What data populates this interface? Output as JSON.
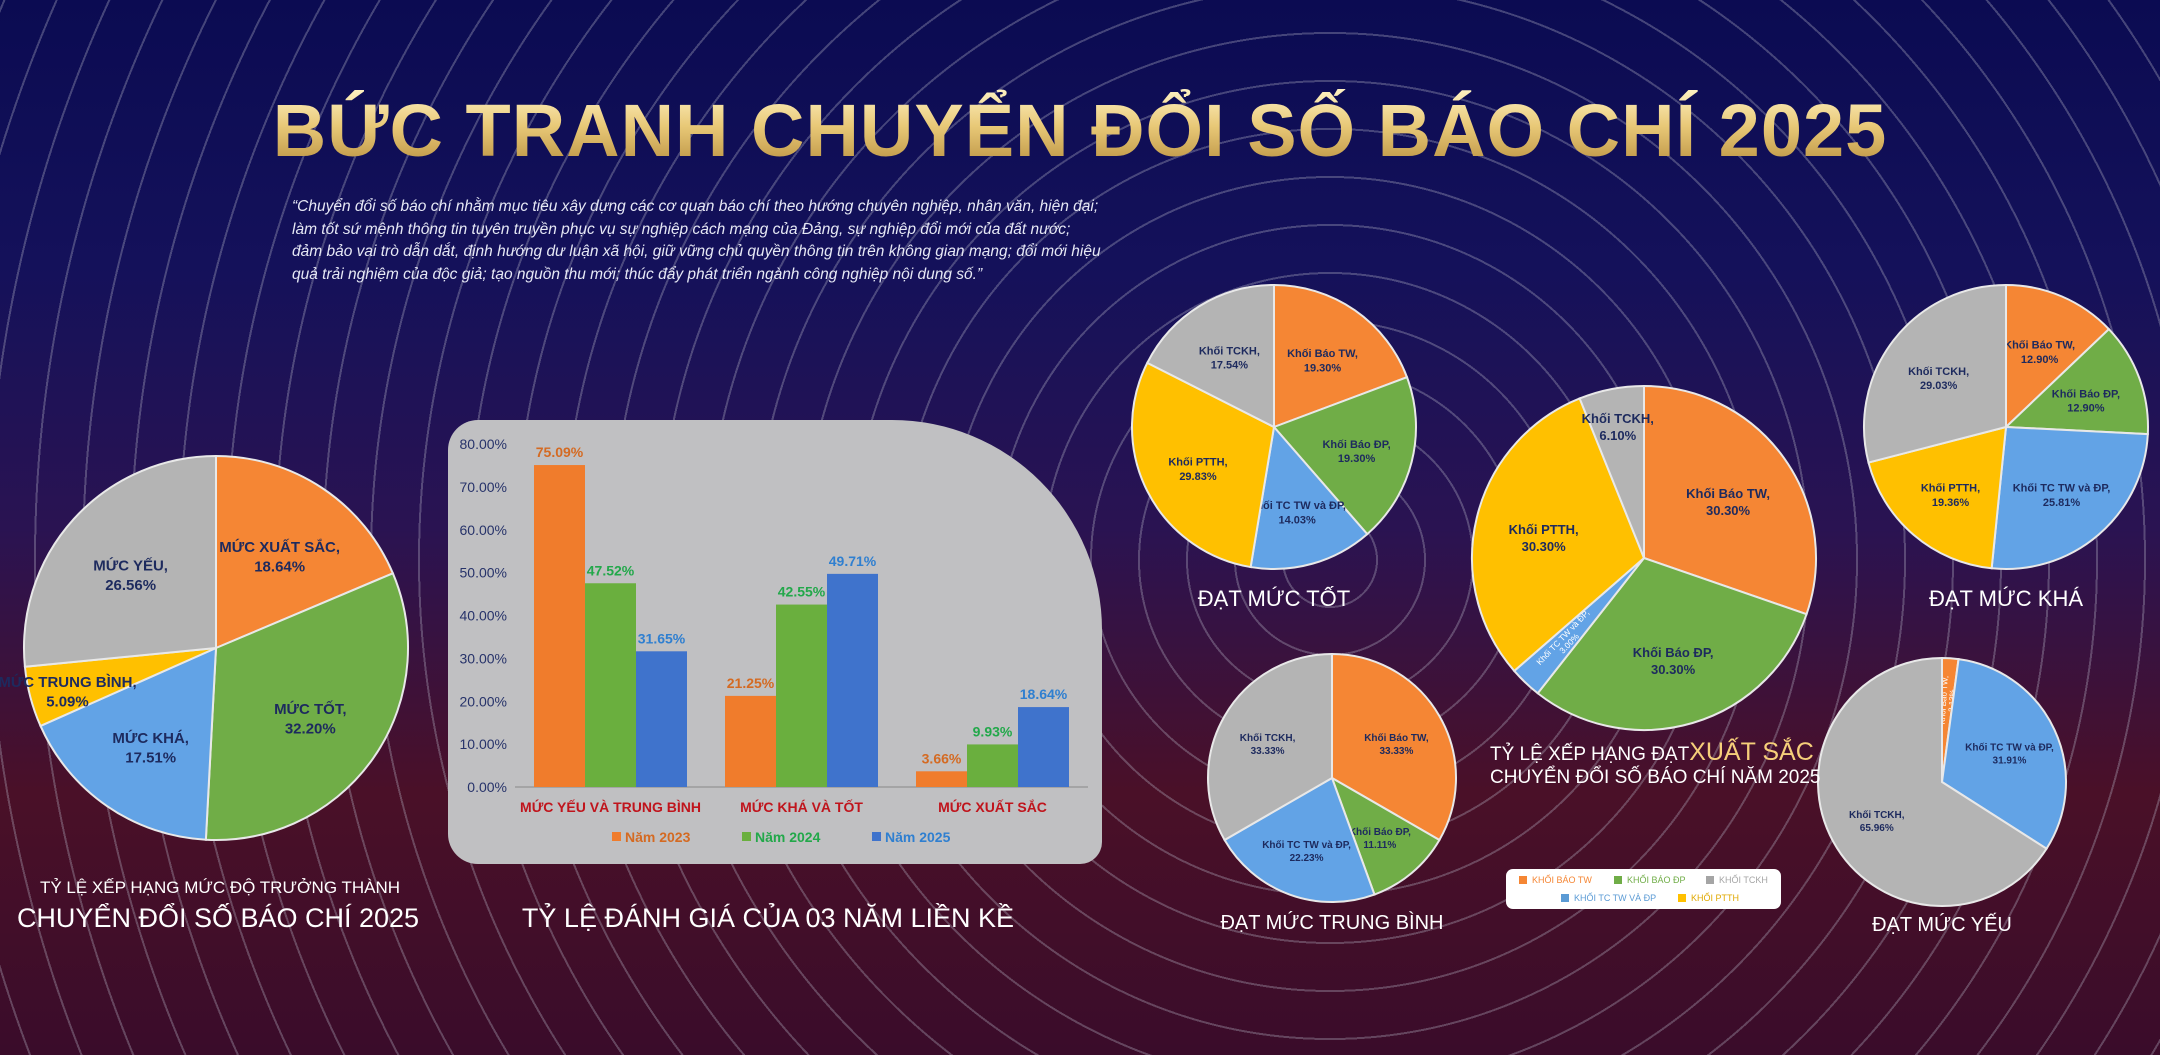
{
  "header": {
    "title": "BỨC TRANH CHUYỂN ĐỔI SỐ BÁO CHÍ 2025",
    "quote": "“Chuyển đổi số báo chí nhằm mục tiêu xây dựng các cơ quan báo chí theo hướng chuyên nghiệp, nhân văn, hiện đại; làm tốt sứ mệnh thông tin tuyên truyền phục vụ sự nghiệp cách mạng của Đảng, sự nghiệp đổi mới của đất nước; đảm bảo vai trò dẫn dắt, định hướng dư luận xã hội, giữ vững chủ quyền thông tin trên không gian mạng; đổi mới hiệu quả trải nghiệm của độc giả; tạo nguồn thu mới; thúc đẩy phát triển ngành công nghiệp nội dung số.”"
  },
  "captions": {
    "maturity_line1": "TỶ LỆ XẾP HẠNG MỨC ĐỘ TRƯỞNG THÀNH",
    "maturity_line2": "CHUYỂN ĐỔI SỐ BÁO CHÍ 2025",
    "three_years": "TỶ LỆ ĐÁNH GIÁ CỦA 03 NĂM LIỀN KỀ",
    "good": "ĐẠT MỨC TỐT",
    "fair": "ĐẠT MỨC KHÁ",
    "average": "ĐẠT MỨC TRUNG BÌNH",
    "weak": "ĐẠT MỨC YẾU",
    "excellent_prefix": "TỶ LỆ XẾP HẠNG ĐẠT",
    "excellent_highlight": "XUẤT SẮC",
    "excellent_line2": "CHUYỂN ĐỔI SỐ BÁO CHÍ NĂM 2025"
  },
  "legend": [
    {
      "label": "KHỐI BÁO TW",
      "color": "#f58634"
    },
    {
      "label": "KHỐI BÁO ĐP",
      "color": "#70ad47"
    },
    {
      "label": "KHỐI TCKH",
      "color": "#a5a5a5"
    },
    {
      "label": "KHỐI TC TW VÀ ĐP",
      "color": "#5b9bd5"
    },
    {
      "label": "KHỐI PTTH",
      "color": "#ffc000"
    }
  ],
  "chart_data": [
    {
      "id": "maturity",
      "type": "pie",
      "slices": [
        {
          "label": "MỨC XUẤT SẮC",
          "value": 18.64,
          "text": "18.64%",
          "color": "#f58634"
        },
        {
          "label": "MỨC TỐT",
          "value": 32.2,
          "text": "32.20%",
          "color": "#70ad47"
        },
        {
          "label": "MỨC KHÁ",
          "value": 17.51,
          "text": "17.51%",
          "color": "#62a3e6"
        },
        {
          "label": "MỨC TRUNG BÌNH",
          "value": 5.09,
          "text": "5.09%",
          "color": "#ffc000"
        },
        {
          "label": "MỨC YẾU",
          "value": 26.56,
          "text": "26.56%",
          "color": "#b4b4b4"
        }
      ]
    },
    {
      "id": "three_years",
      "type": "bar",
      "categories": [
        "MỨC YẾU VÀ TRUNG BÌNH",
        "MỨC KHÁ VÀ TỐT",
        "MỨC XUẤT SẮC"
      ],
      "series": [
        {
          "name": "Năm 2023",
          "color": "#f07c2c",
          "label_color": "#d46a22",
          "values": [
            75.09,
            21.25,
            3.66
          ],
          "labels": [
            "75.09%",
            "21.25%",
            "3.66%"
          ]
        },
        {
          "name": "Năm 2024",
          "color": "#6aaf3e",
          "label_color": "#22a84a",
          "values": [
            47.52,
            42.55,
            9.93
          ],
          "labels": [
            "47.52%",
            "42.55%",
            "9.93%"
          ]
        },
        {
          "name": "Năm 2025",
          "color": "#3f73cc",
          "label_color": "#2f7fd0",
          "values": [
            31.65,
            49.71,
            18.64
          ],
          "labels": [
            "31.65%",
            "49.71%",
            "18.64%"
          ]
        }
      ],
      "yticks": [
        "0.00%",
        "10.00%",
        "20.00%",
        "30.00%",
        "40.00%",
        "50.00%",
        "60.00%",
        "70.00%",
        "80.00%"
      ],
      "ylim": [
        0,
        80
      ],
      "category_label_color": "#c0141c",
      "legend_position": "bottom"
    },
    {
      "id": "good",
      "type": "pie",
      "slices": [
        {
          "label": "Khối Báo TW",
          "value": 19.3,
          "text": "19.30%",
          "color": "#f58634"
        },
        {
          "label": "Khối Báo ĐP",
          "value": 19.3,
          "text": "19.30%",
          "color": "#70ad47"
        },
        {
          "label": "Khối TC TW và ĐP",
          "value": 14.03,
          "text": "14.03%",
          "color": "#62a3e6"
        },
        {
          "label": "Khối PTTH",
          "value": 29.83,
          "text": "29.83%",
          "color": "#ffc000"
        },
        {
          "label": "Khối TCKH",
          "value": 17.54,
          "text": "17.54%",
          "color": "#b4b4b4"
        }
      ]
    },
    {
      "id": "excellent",
      "type": "pie",
      "slices": [
        {
          "label": "Khối Báo TW",
          "value": 30.3,
          "text": "30.30%",
          "color": "#f58634"
        },
        {
          "label": "Khối Báo ĐP",
          "value": 30.3,
          "text": "30.30%",
          "color": "#70ad47"
        },
        {
          "label": "Khối TC TW và ĐP",
          "value": 3.0,
          "text": "3.00%",
          "color": "#62a3e6"
        },
        {
          "label": "Khối PTTH",
          "value": 30.3,
          "text": "30.30%",
          "color": "#ffc000"
        },
        {
          "label": "Khối TCKH",
          "value": 6.1,
          "text": "6.10%",
          "color": "#b4b4b4"
        }
      ]
    },
    {
      "id": "fair",
      "type": "pie",
      "slices": [
        {
          "label": "Khối Báo TW",
          "value": 12.9,
          "text": "12.90%",
          "color": "#f58634"
        },
        {
          "label": "Khối Báo ĐP",
          "value": 12.9,
          "text": "12.90%",
          "color": "#70ad47"
        },
        {
          "label": "Khối TC TW và ĐP",
          "value": 25.81,
          "text": "25.81%",
          "color": "#62a3e6"
        },
        {
          "label": "Khối PTTH",
          "value": 19.36,
          "text": "19.36%",
          "color": "#ffc000"
        },
        {
          "label": "Khối TCKH",
          "value": 29.03,
          "text": "29.03%",
          "color": "#b4b4b4"
        }
      ]
    },
    {
      "id": "average",
      "type": "pie",
      "slices": [
        {
          "label": "Khối Báo TW",
          "value": 33.33,
          "text": "33.33%",
          "color": "#f58634"
        },
        {
          "label": "Khối Báo ĐP",
          "value": 11.11,
          "text": "11.11%",
          "color": "#70ad47"
        },
        {
          "label": "Khối TC TW và ĐP",
          "value": 22.23,
          "text": "22.23%",
          "color": "#62a3e6"
        },
        {
          "label": "Khối TCKH",
          "value": 33.33,
          "text": "33.33%",
          "color": "#b4b4b4"
        }
      ]
    },
    {
      "id": "weak",
      "type": "pie",
      "slices": [
        {
          "label": "Khối Báo TW",
          "value": 2.13,
          "text": "2.13%",
          "color": "#f58634"
        },
        {
          "label": "Khối TC TW và ĐP",
          "value": 31.91,
          "text": "31.91%",
          "color": "#62a3e6"
        },
        {
          "label": "Khối TCKH",
          "value": 65.96,
          "text": "65.96%",
          "color": "#b4b4b4"
        }
      ]
    }
  ]
}
